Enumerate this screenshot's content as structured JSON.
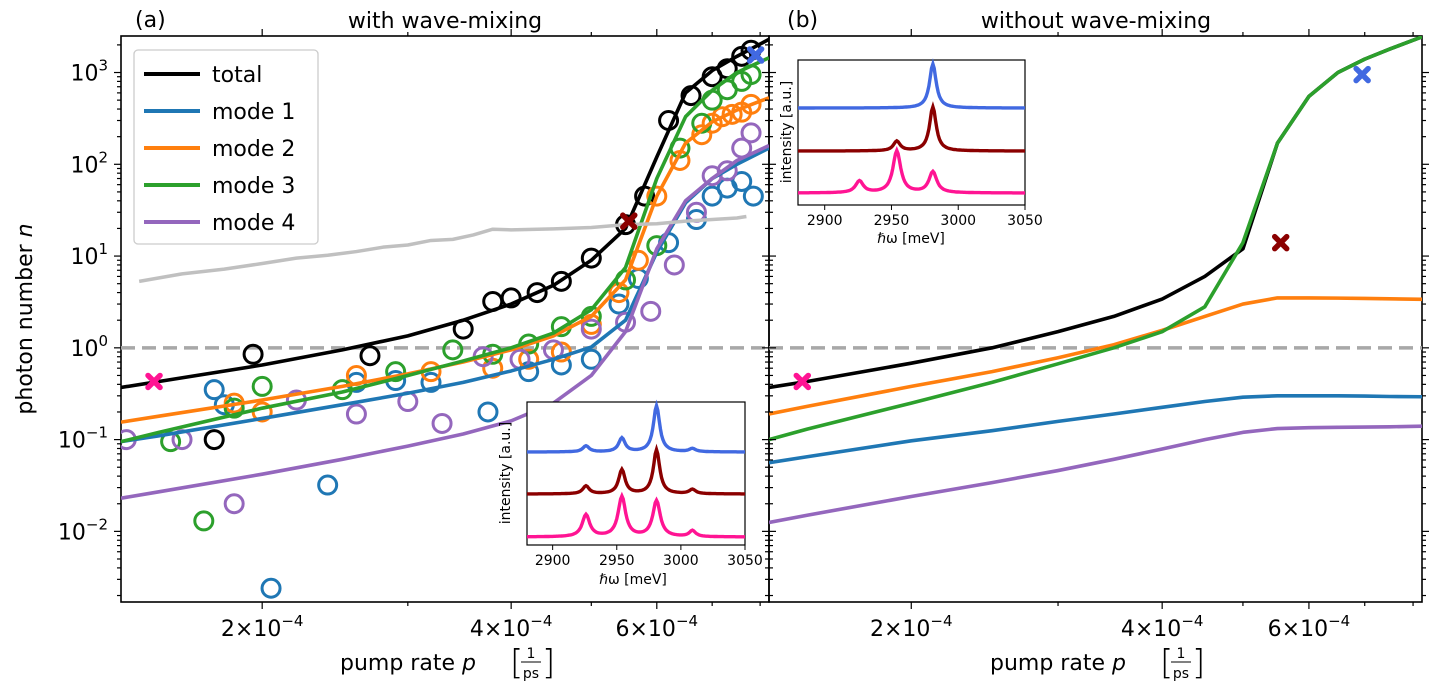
{
  "panels": {
    "a": {
      "label": "(a)",
      "title": "with wave-mixing",
      "ylabel_pre": "photon number ",
      "ylabel_var": "n",
      "xlabel_pre": "pump rate ",
      "xlabel_var": "p",
      "xlabel_num": "1",
      "xlabel_den": "ps"
    },
    "b": {
      "label": "(b)",
      "title": "without wave-mixing",
      "xlabel_pre": "pump rate ",
      "xlabel_var": "p",
      "xlabel_num": "1",
      "xlabel_den": "ps"
    }
  },
  "ticks": {
    "x_major": [
      {
        "value": 0.0002,
        "mant": "2",
        "exp": "−4"
      },
      {
        "value": 0.0004,
        "mant": "4",
        "exp": "−4"
      },
      {
        "value": 0.0006,
        "mant": "6",
        "exp": "−4"
      }
    ],
    "y_major": [
      {
        "value": 0.01,
        "exp": "−2"
      },
      {
        "value": 0.1,
        "exp": "−1"
      },
      {
        "value": 1,
        "exp": "0"
      },
      {
        "value": 10,
        "exp": "1"
      },
      {
        "value": 100,
        "exp": "2"
      },
      {
        "value": 1000,
        "exp": "3"
      }
    ]
  },
  "legend": [
    {
      "label": "total",
      "color": "#000000"
    },
    {
      "label": "mode 1",
      "color": "#1f77b4"
    },
    {
      "label": "mode 2",
      "color": "#ff7f0e"
    },
    {
      "label": "mode 3",
      "color": "#2ca02c"
    },
    {
      "label": "mode 4",
      "color": "#9467bd"
    }
  ],
  "insets": {
    "a": {
      "xlabel": "ℏω [meV]",
      "ylabel": "intensity [a.u.]",
      "xticks": [
        "2900",
        "2950",
        "3000",
        "3050"
      ]
    },
    "b": {
      "xlabel": "ℏω [meV]",
      "ylabel": "intensity [a.u.]",
      "xticks": [
        "2900",
        "2950",
        "3000",
        "3050"
      ]
    }
  },
  "colors": {
    "total": "#000000",
    "mode1": "#1f77b4",
    "mode2": "#ff7f0e",
    "mode3": "#2ca02c",
    "mode4": "#9467bd",
    "gray_curve": "#c0c0c0",
    "threshold": "#a8a8a8",
    "marker_pink": "#ff1493",
    "marker_darkred": "#8b0000",
    "marker_blue": "#4169e1"
  },
  "chart_data": [
    {
      "type": "line",
      "panel": "a",
      "xscale": "log",
      "yscale": "log",
      "xlim": [
        0.000135,
        0.00082
      ],
      "ylim": [
        0.0017,
        2500
      ],
      "threshold_line": 1,
      "grid": false,
      "legend_position": "top-left",
      "series": [
        {
          "name": "total",
          "color": "#000000",
          "x": [
            0.000135,
            0.00015,
            0.0002,
            0.00025,
            0.0003,
            0.00035,
            0.0004,
            0.00045,
            0.0005,
            0.00055,
            0.0006,
            0.00065,
            0.0007,
            0.00075,
            0.00082
          ],
          "y": [
            0.37,
            0.43,
            0.65,
            0.95,
            1.35,
            2.0,
            3.0,
            4.8,
            9.0,
            20,
            120,
            600,
            1050,
            1500,
            2300
          ]
        },
        {
          "name": "mode 1",
          "color": "#1f77b4",
          "x": [
            0.000135,
            0.00015,
            0.0002,
            0.00025,
            0.0003,
            0.00035,
            0.0004,
            0.00045,
            0.0005,
            0.00055,
            0.0006,
            0.00065,
            0.0007,
            0.00075,
            0.00082
          ],
          "y": [
            0.095,
            0.11,
            0.17,
            0.24,
            0.32,
            0.42,
            0.56,
            0.75,
            1.02,
            2.0,
            11,
            38,
            70,
            100,
            150
          ]
        },
        {
          "name": "mode 2",
          "color": "#ff7f0e",
          "x": [
            0.000135,
            0.00015,
            0.0002,
            0.00025,
            0.0003,
            0.00035,
            0.0004,
            0.00045,
            0.0005,
            0.00055,
            0.0006,
            0.00065,
            0.0007,
            0.00075,
            0.00082
          ],
          "y": [
            0.155,
            0.18,
            0.27,
            0.38,
            0.52,
            0.7,
            0.95,
            1.35,
            2.2,
            5.5,
            45,
            170,
            290,
            390,
            530
          ]
        },
        {
          "name": "mode 3",
          "color": "#2ca02c",
          "x": [
            0.000135,
            0.00015,
            0.0002,
            0.00025,
            0.0003,
            0.00035,
            0.0004,
            0.00045,
            0.0005,
            0.00055,
            0.0006,
            0.00065,
            0.0007,
            0.00075,
            0.00082
          ],
          "y": [
            0.095,
            0.12,
            0.22,
            0.33,
            0.5,
            0.72,
            1.0,
            1.45,
            2.6,
            7.5,
            70,
            330,
            640,
            1000,
            1450
          ]
        },
        {
          "name": "mode 4",
          "color": "#9467bd",
          "x": [
            0.000135,
            0.00015,
            0.0002,
            0.00025,
            0.0003,
            0.00035,
            0.0004,
            0.00045,
            0.0005,
            0.00055,
            0.0006,
            0.00065,
            0.0007,
            0.00075,
            0.00082
          ],
          "y": [
            0.023,
            0.027,
            0.042,
            0.061,
            0.085,
            0.115,
            0.16,
            0.25,
            0.5,
            1.5,
            12,
            40,
            70,
            110,
            160
          ]
        },
        {
          "name": "",
          "color": "#c0c0c0",
          "x": [
            0.000142,
            0.00016,
            0.00018,
            0.0002,
            0.00022,
            0.00024,
            0.00026,
            0.00028,
            0.0003,
            0.00032,
            0.00034,
            0.00036,
            0.00038,
            0.0004,
            0.00045,
            0.0005,
            0.00055,
            0.0006,
            0.00065,
            0.0007,
            0.00075,
            0.00077
          ],
          "y": [
            5.3,
            6.4,
            7.2,
            8.3,
            9.5,
            10.2,
            11.2,
            12.5,
            13.2,
            14.8,
            15.2,
            17,
            19.6,
            19.3,
            19.8,
            20.5,
            22,
            22.5,
            24,
            25,
            26,
            27
          ]
        }
      ],
      "scatter": [
        {
          "name": "total",
          "color": "#000000",
          "x": [
            0.000175,
            0.000195,
            0.00027,
            0.00035,
            0.00038,
            0.0004,
            0.00043,
            0.00046,
            0.0005,
            0.00055,
            0.00058,
            0.00062,
            0.00066,
            0.0007,
            0.00073,
            0.00076,
            0.00078
          ],
          "y": [
            0.1,
            0.85,
            0.82,
            1.6,
            3.2,
            3.5,
            4.0,
            5.3,
            9.5,
            22,
            45,
            300,
            560,
            900,
            1100,
            1500,
            1750
          ]
        },
        {
          "name": "mode 1",
          "color": "#1f77b4",
          "x": [
            0.000175,
            0.00018,
            0.000205,
            0.00024,
            0.00026,
            0.00029,
            0.00032,
            0.000375,
            0.00042,
            0.00046,
            0.0005,
            0.00054,
            0.00057,
            0.00062,
            0.00067,
            0.0007,
            0.00073,
            0.00076,
            0.000785
          ],
          "y": [
            0.35,
            0.24,
            0.0024,
            0.032,
            0.42,
            0.44,
            0.42,
            0.2,
            0.55,
            0.65,
            0.75,
            3.0,
            5.7,
            14,
            25,
            45,
            55,
            65,
            45
          ]
        },
        {
          "name": "mode 2",
          "color": "#ff7f0e",
          "x": [
            0.000185,
            0.0002,
            0.00026,
            0.00032,
            0.00038,
            0.00042,
            0.00046,
            0.0005,
            0.00054,
            0.00057,
            0.0006,
            0.00064,
            0.00068,
            0.0007,
            0.00072,
            0.00074,
            0.00076,
            0.00078
          ],
          "y": [
            0.25,
            0.2,
            0.5,
            0.55,
            0.6,
            0.75,
            0.9,
            1.8,
            4.0,
            9.0,
            45,
            110,
            210,
            280,
            330,
            350,
            370,
            450
          ]
        },
        {
          "name": "mode 3",
          "color": "#2ca02c",
          "x": [
            0.000155,
            0.00017,
            0.000185,
            0.0002,
            0.00025,
            0.00029,
            0.00034,
            0.00038,
            0.00042,
            0.00046,
            0.0005,
            0.00055,
            0.0006,
            0.00064,
            0.00068,
            0.0007,
            0.00073,
            0.00076,
            0.00078
          ],
          "y": [
            0.095,
            0.013,
            0.22,
            0.38,
            0.35,
            0.55,
            0.95,
            0.85,
            1.1,
            1.7,
            2.2,
            5.5,
            13,
            150,
            280,
            500,
            650,
            800,
            950
          ]
        },
        {
          "name": "mode 4",
          "color": "#9467bd",
          "x": [
            0.000137,
            0.00016,
            0.000185,
            0.00022,
            0.00026,
            0.0003,
            0.00033,
            0.00037,
            0.00041,
            0.00045,
            0.0005,
            0.00055,
            0.00059,
            0.00063,
            0.00067,
            0.0007,
            0.00073,
            0.00076,
            0.00078
          ],
          "y": [
            0.1,
            0.1,
            0.02,
            0.27,
            0.19,
            0.26,
            0.15,
            0.8,
            0.75,
            0.95,
            1.6,
            1.9,
            2.5,
            8.0,
            30,
            75,
            85,
            150,
            220
          ]
        }
      ],
      "markers": [
        {
          "x": 0.000148,
          "y": 0.43,
          "color": "#ff1493"
        },
        {
          "x": 0.000555,
          "y": 24,
          "color": "#8b0000"
        },
        {
          "x": 0.00079,
          "y": 1550,
          "color": "#4169e1"
        }
      ]
    },
    {
      "type": "line",
      "panel": "b",
      "xscale": "log",
      "yscale": "log",
      "xlim": [
        0.000135,
        0.00082
      ],
      "ylim": [
        0.0017,
        2500
      ],
      "threshold_line": 1,
      "grid": false,
      "series": [
        {
          "name": "total",
          "color": "#000000",
          "x": [
            0.000135,
            0.00015,
            0.0002,
            0.00025,
            0.0003,
            0.00035,
            0.0004,
            0.00045,
            0.0005,
            0.00055,
            0.0006,
            0.00065,
            0.0007,
            0.00075,
            0.00082
          ],
          "y": [
            0.37,
            0.43,
            0.68,
            1.0,
            1.5,
            2.2,
            3.4,
            6.0,
            12,
            170,
            550,
            1000,
            1400,
            1800,
            2450
          ]
        },
        {
          "name": "mode 1",
          "color": "#1f77b4",
          "x": [
            0.000135,
            0.00015,
            0.0002,
            0.00025,
            0.0003,
            0.00035,
            0.0004,
            0.00045,
            0.0005,
            0.00055,
            0.0006,
            0.00065,
            0.0007,
            0.00075,
            0.00082
          ],
          "y": [
            0.056,
            0.065,
            0.097,
            0.125,
            0.158,
            0.19,
            0.225,
            0.26,
            0.29,
            0.3,
            0.3,
            0.3,
            0.298,
            0.295,
            0.293
          ]
        },
        {
          "name": "mode 2",
          "color": "#ff7f0e",
          "x": [
            0.000135,
            0.00015,
            0.0002,
            0.00025,
            0.0003,
            0.00035,
            0.0004,
            0.00045,
            0.0005,
            0.00055,
            0.0006,
            0.00065,
            0.0007,
            0.00075,
            0.00082
          ],
          "y": [
            0.19,
            0.23,
            0.38,
            0.55,
            0.78,
            1.08,
            1.55,
            2.2,
            3.0,
            3.5,
            3.5,
            3.48,
            3.45,
            3.42,
            3.38
          ]
        },
        {
          "name": "mode 3",
          "color": "#2ca02c",
          "x": [
            0.000135,
            0.00015,
            0.0002,
            0.00025,
            0.0003,
            0.00035,
            0.0004,
            0.00045,
            0.0005,
            0.00055,
            0.0006,
            0.00065,
            0.0007,
            0.00075,
            0.00082
          ],
          "y": [
            0.1,
            0.13,
            0.25,
            0.42,
            0.67,
            1.0,
            1.5,
            2.8,
            14,
            170,
            550,
            1000,
            1400,
            1800,
            2450
          ]
        },
        {
          "name": "mode 4",
          "color": "#9467bd",
          "x": [
            0.000135,
            0.00015,
            0.0002,
            0.00025,
            0.0003,
            0.00035,
            0.0004,
            0.00045,
            0.0005,
            0.00055,
            0.0006,
            0.00065,
            0.0007,
            0.00075,
            0.00082
          ],
          "y": [
            0.0125,
            0.015,
            0.024,
            0.034,
            0.046,
            0.061,
            0.079,
            0.1,
            0.12,
            0.132,
            0.135,
            0.136,
            0.137,
            0.138,
            0.14
          ]
        }
      ],
      "markers": [
        {
          "x": 0.000148,
          "y": 0.43,
          "color": "#ff1493"
        },
        {
          "x": 0.000555,
          "y": 14,
          "color": "#8b0000"
        },
        {
          "x": 0.000695,
          "y": 950,
          "color": "#4169e1"
        }
      ]
    }
  ]
}
